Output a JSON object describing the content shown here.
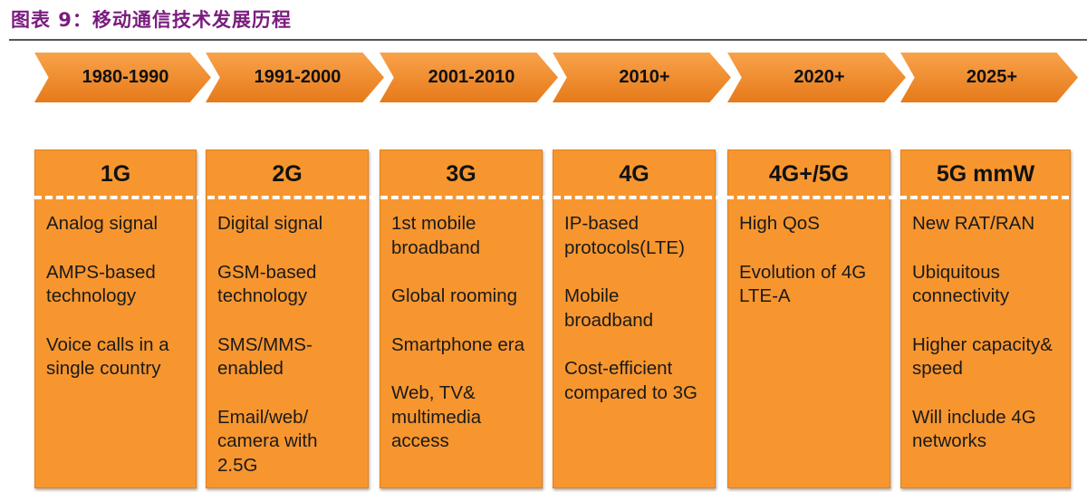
{
  "title": "图表 9：移动通信技术发展历程",
  "columns": [
    {
      "period": "1980-1990",
      "gen": "1G",
      "items": [
        "Analog signal",
        "AMPS-based technology",
        "Voice calls in a single country"
      ]
    },
    {
      "period": "1991-2000",
      "gen": "2G",
      "items": [
        "Digital signal",
        "GSM-based technology",
        "SMS/MMS-enabled",
        "Email/web/ camera with 2.5G"
      ]
    },
    {
      "period": "2001-2010",
      "gen": "3G",
      "items": [
        "1st mobile broadband",
        "Global rooming",
        "Smartphone era",
        "Web, TV& multimedia access"
      ]
    },
    {
      "period": "2010+",
      "gen": "4G",
      "items": [
        "IP-based protocols(LTE)",
        "Mobile broadband",
        "Cost-efficient compared to 3G"
      ]
    },
    {
      "period": "2020+",
      "gen": "4G+/5G",
      "items": [
        "High QoS",
        "Evolution of 4G LTE-A"
      ]
    },
    {
      "period": "2025+",
      "gen": "5G mmW",
      "items": [
        "New RAT/RAN",
        "Ubiquitous connectivity",
        "Higher capacity& speed",
        "Will include 4G networks"
      ]
    }
  ]
}
